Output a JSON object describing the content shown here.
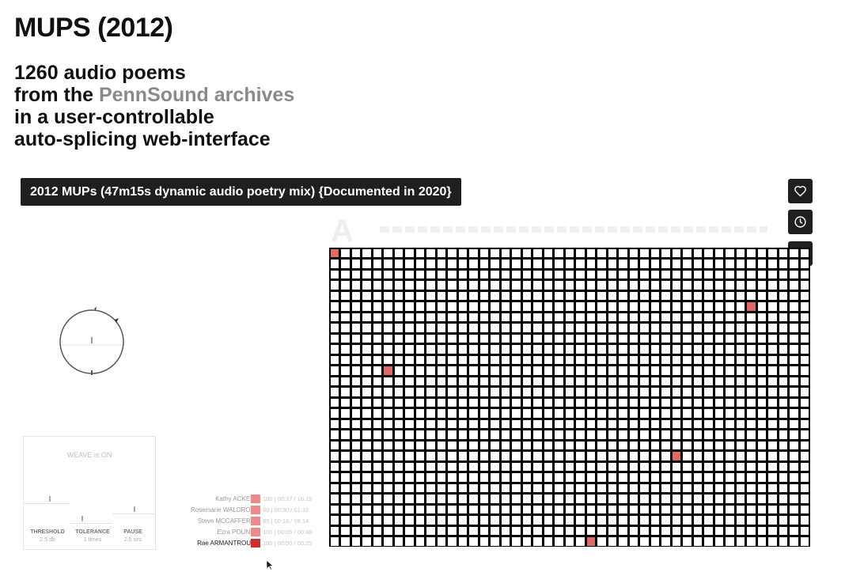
{
  "page": {
    "title": "MUPS (2012)",
    "subtitle": {
      "line1": "1260 audio poems",
      "line2_prefix": "from the ",
      "line2_link": "PennSound archives",
      "line3": "in a user-controllable",
      "line4": "auto-splicing web-interface"
    }
  },
  "video": {
    "title": "2012 MUPs (47m15s dynamic audio poetry mix) {Documented in 2020}",
    "buttons": [
      {
        "label": "Like",
        "icon": "heart-icon"
      },
      {
        "label": "Watch Later",
        "icon": "clock-icon"
      },
      {
        "label": "Share",
        "icon": "share-icon"
      }
    ]
  },
  "app": {
    "header_letter": "A",
    "weave": {
      "status": "WEAVE is ON",
      "controls": [
        {
          "label": "THRESHOLD",
          "value": "2.5 db",
          "level": 0.55
        },
        {
          "label": "TOLERANCE",
          "value": "1 times",
          "level": 0.25
        },
        {
          "label": "PAUSE",
          "value": "2.5 sec",
          "level": 0.5
        }
      ]
    },
    "legend": [
      {
        "name": "Kathy ACKER",
        "info": "100  |  00:37 / 16:15",
        "color": "#ee8a8a",
        "active": false
      },
      {
        "name": "Rosemarie WALDROP",
        "info": "80  |  00:30 / 01:32",
        "color": "#ee8a8a",
        "active": false
      },
      {
        "name": "Steve MCCAFFERY",
        "info": "85  |  00:18 / 06:14",
        "color": "#ee8a8a",
        "active": false
      },
      {
        "name": "Ezra POUND",
        "info": "100  |  00:05 / 00:48",
        "color": "#ee8a8a",
        "active": false
      },
      {
        "name": "Rae ARMANTROUT",
        "info": "100  |  00:00 / 00:25",
        "color": "#d42a2a",
        "active": true
      }
    ],
    "grid": {
      "columns": 45,
      "rows": 28,
      "highlight_color": "#e26767",
      "highlighted": [
        [
          0,
          0
        ],
        [
          5,
          39
        ],
        [
          11,
          5
        ],
        [
          19,
          32
        ],
        [
          27,
          24
        ]
      ]
    }
  },
  "colors": {
    "accent_link": "#8a8a8a",
    "overlay": "#1f1f1f",
    "grid": "#000000"
  }
}
